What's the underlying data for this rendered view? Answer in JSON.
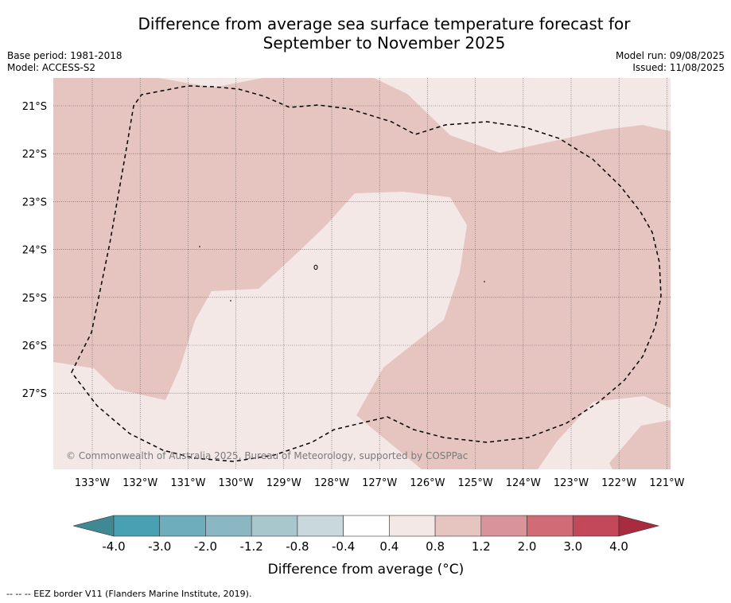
{
  "title_line1": "Difference from average sea surface temperature forecast for",
  "title_line2": "September to November 2025",
  "meta": {
    "base_period": "Base period: 1981-2018",
    "model": "Model: ACCESS-S2",
    "model_run": "Model run: 09/08/2025",
    "issued": "Issued: 11/08/2025"
  },
  "map": {
    "lat_labels": [
      "21°S",
      "22°S",
      "23°S",
      "24°S",
      "25°S",
      "26°S",
      "27°S"
    ],
    "lon_labels": [
      "133°W",
      "132°W",
      "131°W",
      "130°W",
      "129°W",
      "128°W",
      "127°W",
      "126°W",
      "125°W",
      "124°W",
      "123°W",
      "122°W",
      "121°W"
    ],
    "copyright": "© Commonwealth of Australia 2025, Bureau of Meteorology, supported by COSPPac",
    "fill_colors": {
      "warm_0_8_1_2": "#e6c5c1",
      "warm_0_4_0_8": "#f4e8e7"
    }
  },
  "colorbar": {
    "label": "Difference from average (°C)",
    "tick_labels": [
      "-4.0",
      "-3.0",
      "-2.0",
      "-1.2",
      "-0.8",
      "-0.4",
      "0.4",
      "0.8",
      "1.2",
      "2.0",
      "3.0",
      "4.0"
    ],
    "colors": [
      "#3f8894",
      "#48a0b2",
      "#6eaebc",
      "#8bb7c3",
      "#a8c7cd",
      "#c9d8dc",
      "#ffffff",
      "#f4e8e7",
      "#e6c5c1",
      "#d9939a",
      "#cf6c75",
      "#c2485a",
      "#a92b40"
    ]
  },
  "footnote": "-- -- -- EEZ border V11 (Flanders Marine Institute, 2019)."
}
